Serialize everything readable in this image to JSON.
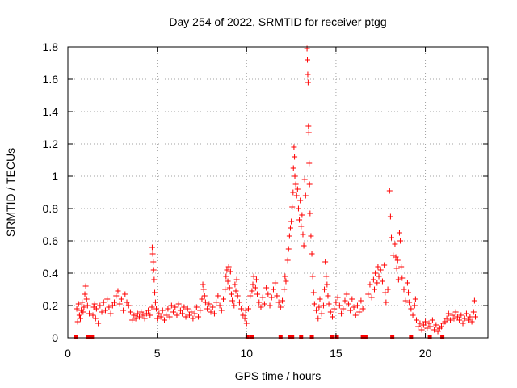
{
  "chart_data": {
    "type": "scatter",
    "title": "Day 254 of 2022, SRMTID for receiver ptgg",
    "xlabel": "GPS time / hours",
    "ylabel": "SRMTID / TECUs",
    "xlim": [
      0,
      23.5
    ],
    "ylim": [
      0,
      1.8
    ],
    "xticks": [
      0,
      5,
      10,
      15,
      20
    ],
    "xtick_labels": [
      "0",
      "5",
      "10",
      "15",
      "20"
    ],
    "yticks": [
      0,
      0.2,
      0.4,
      0.6,
      0.8,
      1.0,
      1.2,
      1.4,
      1.6,
      1.8
    ],
    "ytick_labels": [
      "0",
      "0.2",
      "0.4",
      "0.6",
      "0.8",
      "1",
      "1.2",
      "1.4",
      "1.6",
      "1.8"
    ],
    "grid": true,
    "marker": "+",
    "color": "#ff0000",
    "baseline_markers_x": [
      0.45,
      1.15,
      1.35,
      10.05,
      10.3,
      11.9,
      12.45,
      12.55,
      13.05,
      13.65,
      14.8,
      15.05,
      16.5,
      16.65,
      18.15,
      19.2,
      20.25,
      20.95
    ],
    "series": [
      {
        "name": "SRMTID",
        "points": [
          [
            0.5,
            0.18
          ],
          [
            0.55,
            0.1
          ],
          [
            0.6,
            0.21
          ],
          [
            0.65,
            0.14
          ],
          [
            0.7,
            0.12
          ],
          [
            0.75,
            0.17
          ],
          [
            0.8,
            0.22
          ],
          [
            0.85,
            0.16
          ],
          [
            0.9,
            0.19
          ],
          [
            0.95,
            0.27
          ],
          [
            1.0,
            0.32
          ],
          [
            1.05,
            0.24
          ],
          [
            1.1,
            0.2
          ],
          [
            1.2,
            0.15
          ],
          [
            1.4,
            0.14
          ],
          [
            1.45,
            0.19
          ],
          [
            1.5,
            0.21
          ],
          [
            1.55,
            0.12
          ],
          [
            1.6,
            0.18
          ],
          [
            1.7,
            0.09
          ],
          [
            1.8,
            0.2
          ],
          [
            1.9,
            0.16
          ],
          [
            2.0,
            0.22
          ],
          [
            2.1,
            0.17
          ],
          [
            2.2,
            0.24
          ],
          [
            2.3,
            0.19
          ],
          [
            2.4,
            0.15
          ],
          [
            2.5,
            0.2
          ],
          [
            2.6,
            0.22
          ],
          [
            2.7,
            0.26
          ],
          [
            2.8,
            0.29
          ],
          [
            2.9,
            0.21
          ],
          [
            3.0,
            0.24
          ],
          [
            3.1,
            0.17
          ],
          [
            3.2,
            0.27
          ],
          [
            3.3,
            0.22
          ],
          [
            3.4,
            0.2
          ],
          [
            3.5,
            0.16
          ],
          [
            3.6,
            0.11
          ],
          [
            3.7,
            0.14
          ],
          [
            3.8,
            0.12
          ],
          [
            3.9,
            0.15
          ],
          [
            4.0,
            0.13
          ],
          [
            4.1,
            0.16
          ],
          [
            4.2,
            0.14
          ],
          [
            4.3,
            0.12
          ],
          [
            4.4,
            0.15
          ],
          [
            4.5,
            0.17
          ],
          [
            4.6,
            0.14
          ],
          [
            4.7,
            0.19
          ],
          [
            4.72,
            0.56
          ],
          [
            4.75,
            0.52
          ],
          [
            4.78,
            0.47
          ],
          [
            4.8,
            0.42
          ],
          [
            4.83,
            0.36
          ],
          [
            4.86,
            0.28
          ],
          [
            4.9,
            0.22
          ],
          [
            4.95,
            0.18
          ],
          [
            5.0,
            0.12
          ],
          [
            5.1,
            0.15
          ],
          [
            5.2,
            0.13
          ],
          [
            5.3,
            0.17
          ],
          [
            5.4,
            0.11
          ],
          [
            5.5,
            0.14
          ],
          [
            5.6,
            0.18
          ],
          [
            5.7,
            0.13
          ],
          [
            5.8,
            0.2
          ],
          [
            5.9,
            0.16
          ],
          [
            6.0,
            0.19
          ],
          [
            6.1,
            0.14
          ],
          [
            6.2,
            0.21
          ],
          [
            6.3,
            0.17
          ],
          [
            6.4,
            0.15
          ],
          [
            6.5,
            0.19
          ],
          [
            6.6,
            0.13
          ],
          [
            6.7,
            0.18
          ],
          [
            6.8,
            0.14
          ],
          [
            6.9,
            0.16
          ],
          [
            7.0,
            0.12
          ],
          [
            7.1,
            0.15
          ],
          [
            7.2,
            0.19
          ],
          [
            7.3,
            0.13
          ],
          [
            7.4,
            0.17
          ],
          [
            7.5,
            0.24
          ],
          [
            7.55,
            0.33
          ],
          [
            7.6,
            0.3
          ],
          [
            7.65,
            0.26
          ],
          [
            7.7,
            0.22
          ],
          [
            7.8,
            0.18
          ],
          [
            7.9,
            0.21
          ],
          [
            8.0,
            0.16
          ],
          [
            8.1,
            0.19
          ],
          [
            8.2,
            0.15
          ],
          [
            8.3,
            0.22
          ],
          [
            8.4,
            0.26
          ],
          [
            8.5,
            0.2
          ],
          [
            8.6,
            0.17
          ],
          [
            8.7,
            0.24
          ],
          [
            8.8,
            0.3
          ],
          [
            8.85,
            0.38
          ],
          [
            8.9,
            0.42
          ],
          [
            8.95,
            0.35
          ],
          [
            9.0,
            0.44
          ],
          [
            9.05,
            0.31
          ],
          [
            9.1,
            0.41
          ],
          [
            9.15,
            0.27
          ],
          [
            9.2,
            0.23
          ],
          [
            9.3,
            0.2
          ],
          [
            9.35,
            0.33
          ],
          [
            9.4,
            0.29
          ],
          [
            9.45,
            0.36
          ],
          [
            9.5,
            0.26
          ],
          [
            9.6,
            0.22
          ],
          [
            9.7,
            0.18
          ],
          [
            9.8,
            0.14
          ],
          [
            9.9,
            0.12
          ],
          [
            9.95,
            0.17
          ],
          [
            10.0,
            0.09
          ],
          [
            10.1,
            0.18
          ],
          [
            10.2,
            0.26
          ],
          [
            10.3,
            0.29
          ],
          [
            10.35,
            0.33
          ],
          [
            10.4,
            0.38
          ],
          [
            10.5,
            0.31
          ],
          [
            10.55,
            0.36
          ],
          [
            10.6,
            0.27
          ],
          [
            10.7,
            0.22
          ],
          [
            10.8,
            0.19
          ],
          [
            10.9,
            0.25
          ],
          [
            11.0,
            0.21
          ],
          [
            11.1,
            0.31
          ],
          [
            11.2,
            0.27
          ],
          [
            11.3,
            0.2
          ],
          [
            11.4,
            0.25
          ],
          [
            11.5,
            0.3
          ],
          [
            11.6,
            0.34
          ],
          [
            11.7,
            0.26
          ],
          [
            11.8,
            0.22
          ],
          [
            11.9,
            0.19
          ],
          [
            12.0,
            0.23
          ],
          [
            12.1,
            0.3
          ],
          [
            12.15,
            0.38
          ],
          [
            12.2,
            0.35
          ],
          [
            12.3,
            0.48
          ],
          [
            12.35,
            0.55
          ],
          [
            12.4,
            0.63
          ],
          [
            12.45,
            0.68
          ],
          [
            12.5,
            0.72
          ],
          [
            12.55,
            0.81
          ],
          [
            12.6,
            0.9
          ],
          [
            12.62,
            1.05
          ],
          [
            12.65,
            1.18
          ],
          [
            12.68,
            1.12
          ],
          [
            12.7,
            1.0
          ],
          [
            12.75,
            0.95
          ],
          [
            12.8,
            0.88
          ],
          [
            12.85,
            0.92
          ],
          [
            12.9,
            0.8
          ],
          [
            12.95,
            0.73
          ],
          [
            13.0,
            0.85
          ],
          [
            13.05,
            0.69
          ],
          [
            13.1,
            0.76
          ],
          [
            13.15,
            0.64
          ],
          [
            13.2,
            0.57
          ],
          [
            13.25,
            0.98
          ],
          [
            13.3,
            0.88
          ],
          [
            13.38,
            1.79
          ],
          [
            13.4,
            1.72
          ],
          [
            13.42,
            1.63
          ],
          [
            13.44,
            1.58
          ],
          [
            13.46,
            1.31
          ],
          [
            13.48,
            1.27
          ],
          [
            13.5,
            1.08
          ],
          [
            13.52,
            0.95
          ],
          [
            13.55,
            0.77
          ],
          [
            13.6,
            0.63
          ],
          [
            13.65,
            0.52
          ],
          [
            13.7,
            0.38
          ],
          [
            13.75,
            0.28
          ],
          [
            13.8,
            0.21
          ],
          [
            13.9,
            0.17
          ],
          [
            14.0,
            0.12
          ],
          [
            14.05,
            0.19
          ],
          [
            14.1,
            0.24
          ],
          [
            14.2,
            0.15
          ],
          [
            14.3,
            0.2
          ],
          [
            14.35,
            0.3
          ],
          [
            14.4,
            0.47
          ],
          [
            14.45,
            0.38
          ],
          [
            14.5,
            0.33
          ],
          [
            14.55,
            0.26
          ],
          [
            14.6,
            0.21
          ],
          [
            14.7,
            0.16
          ],
          [
            14.8,
            0.13
          ],
          [
            14.9,
            0.18
          ],
          [
            15.0,
            0.22
          ],
          [
            15.1,
            0.25
          ],
          [
            15.2,
            0.2
          ],
          [
            15.3,
            0.15
          ],
          [
            15.4,
            0.18
          ],
          [
            15.5,
            0.23
          ],
          [
            15.6,
            0.27
          ],
          [
            15.7,
            0.21
          ],
          [
            15.8,
            0.17
          ],
          [
            15.9,
            0.24
          ],
          [
            16.0,
            0.19
          ],
          [
            16.1,
            0.14
          ],
          [
            16.2,
            0.2
          ],
          [
            16.3,
            0.16
          ],
          [
            16.4,
            0.23
          ],
          [
            16.5,
            0.18
          ],
          [
            16.8,
            0.27
          ],
          [
            16.9,
            0.33
          ],
          [
            17.0,
            0.25
          ],
          [
            17.1,
            0.36
          ],
          [
            17.15,
            0.3
          ],
          [
            17.2,
            0.4
          ],
          [
            17.3,
            0.34
          ],
          [
            17.35,
            0.44
          ],
          [
            17.4,
            0.38
          ],
          [
            17.5,
            0.42
          ],
          [
            17.6,
            0.35
          ],
          [
            17.7,
            0.45
          ],
          [
            17.75,
            0.28
          ],
          [
            17.8,
            0.22
          ],
          [
            17.9,
            0.3
          ],
          [
            18.0,
            0.91
          ],
          [
            18.05,
            0.75
          ],
          [
            18.1,
            0.62
          ],
          [
            18.2,
            0.51
          ],
          [
            18.3,
            0.58
          ],
          [
            18.35,
            0.5
          ],
          [
            18.4,
            0.43
          ],
          [
            18.45,
            0.48
          ],
          [
            18.5,
            0.36
          ],
          [
            18.55,
            0.65
          ],
          [
            18.6,
            0.6
          ],
          [
            18.65,
            0.44
          ],
          [
            18.7,
            0.37
          ],
          [
            18.8,
            0.3
          ],
          [
            18.9,
            0.23
          ],
          [
            19.0,
            0.34
          ],
          [
            19.05,
            0.28
          ],
          [
            19.1,
            0.22
          ],
          [
            19.2,
            0.18
          ],
          [
            19.3,
            0.14
          ],
          [
            19.4,
            0.2
          ],
          [
            19.45,
            0.24
          ],
          [
            19.5,
            0.11
          ],
          [
            19.6,
            0.07
          ],
          [
            19.7,
            0.09
          ],
          [
            19.8,
            0.05
          ],
          [
            19.9,
            0.08
          ],
          [
            20.0,
            0.1
          ],
          [
            20.1,
            0.06
          ],
          [
            20.2,
            0.09
          ],
          [
            20.3,
            0.07
          ],
          [
            20.4,
            0.11
          ],
          [
            20.5,
            0.05
          ],
          [
            20.6,
            0.08
          ],
          [
            20.7,
            0.04
          ],
          [
            20.8,
            0.06
          ],
          [
            20.9,
            0.07
          ],
          [
            21.0,
            0.09
          ],
          [
            21.1,
            0.1
          ],
          [
            21.2,
            0.12
          ],
          [
            21.3,
            0.15
          ],
          [
            21.4,
            0.11
          ],
          [
            21.5,
            0.14
          ],
          [
            21.6,
            0.12
          ],
          [
            21.7,
            0.16
          ],
          [
            21.8,
            0.13
          ],
          [
            21.9,
            0.11
          ],
          [
            22.0,
            0.14
          ],
          [
            22.1,
            0.09
          ],
          [
            22.2,
            0.12
          ],
          [
            22.3,
            0.15
          ],
          [
            22.4,
            0.11
          ],
          [
            22.5,
            0.13
          ],
          [
            22.6,
            0.1
          ],
          [
            22.7,
            0.16
          ],
          [
            22.75,
            0.23
          ],
          [
            22.8,
            0.13
          ]
        ]
      }
    ]
  }
}
